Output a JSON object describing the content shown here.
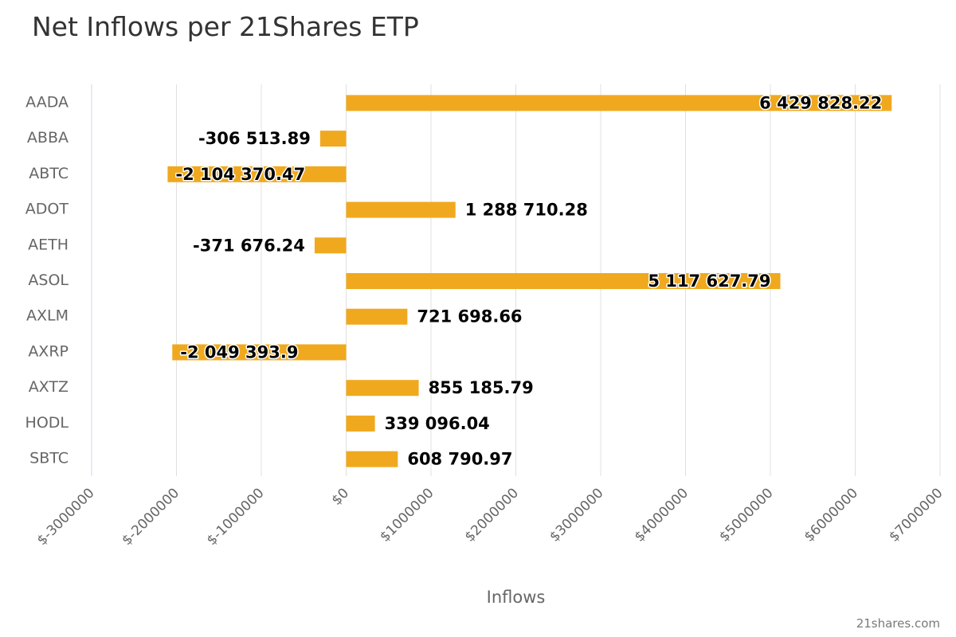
{
  "chart_data": {
    "type": "bar",
    "orientation": "horizontal",
    "title": "Net Inflows per 21Shares ETP",
    "xlabel": "Inflows",
    "ylabel": "",
    "categories": [
      "AADA",
      "ABBA",
      "ABTC",
      "ADOT",
      "AETH",
      "ASOL",
      "AXLM",
      "AXRP",
      "AXTZ",
      "HODL",
      "SBTC"
    ],
    "values": [
      6429828.22,
      -306513.89,
      -2104370.47,
      1288710.28,
      -371676.24,
      5117627.79,
      721698.66,
      -2049393.9,
      855185.79,
      339096.04,
      608790.97
    ],
    "data_labels": [
      "6 429 828.22",
      "-306 513.89",
      "-2 104 370.47",
      "1 288 710.28",
      "-371 676.24",
      "5 117 627.79",
      "721 698.66",
      "-2 049 393.9",
      "855 185.79",
      "339 096.04",
      "608 790.97"
    ],
    "xlim": [
      -3000000,
      7000000
    ],
    "xticks": [
      -3000000,
      -2000000,
      -1000000,
      0,
      1000000,
      2000000,
      3000000,
      4000000,
      5000000,
      6000000,
      7000000
    ],
    "xtick_labels": [
      "$-3000000",
      "$-2000000",
      "$-1000000",
      "$0",
      "$1000000",
      "$2000000",
      "$3000000",
      "$4000000",
      "$5000000",
      "$6000000",
      "$7000000"
    ],
    "grid": true,
    "legend": "none",
    "bar_color": "#f0a91e",
    "grid_color": "#e0e0e0",
    "axis_line_color": "#ccd6eb"
  },
  "credit": "21shares.com"
}
